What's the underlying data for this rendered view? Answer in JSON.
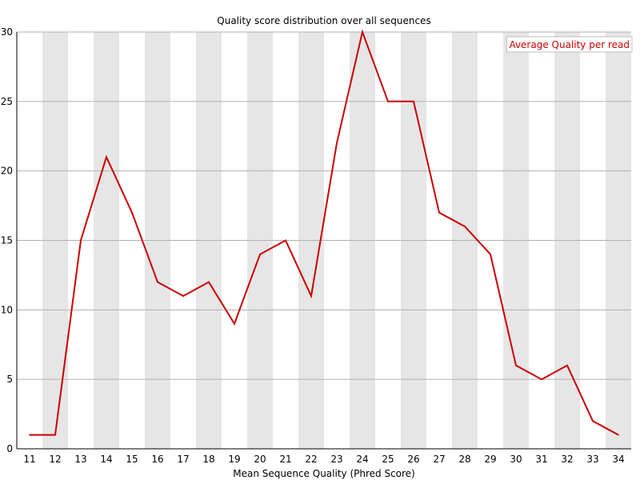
{
  "chart_data": {
    "type": "line",
    "title": "Quality score distribution over all sequences",
    "xlabel": "Mean Sequence Quality (Phred Score)",
    "ylabel": "",
    "x": [
      11,
      12,
      13,
      14,
      15,
      16,
      17,
      18,
      19,
      20,
      21,
      22,
      23,
      24,
      25,
      26,
      27,
      28,
      29,
      30,
      31,
      32,
      33,
      34
    ],
    "series": [
      {
        "name": "Average Quality per read",
        "values": [
          1,
          1,
          15,
          21,
          17,
          12,
          11,
          12,
          9,
          14,
          15,
          11,
          22,
          30,
          25,
          25,
          17,
          16,
          14,
          6,
          5,
          6,
          2,
          1
        ],
        "color": "#cc0000"
      }
    ],
    "ylim": [
      0,
      30
    ],
    "yticks": [
      0,
      5,
      10,
      15,
      20,
      25,
      30
    ],
    "grid": true,
    "band_colors": [
      "#ffffff",
      "#e6e6e6"
    ],
    "legend_position": "top-right"
  }
}
